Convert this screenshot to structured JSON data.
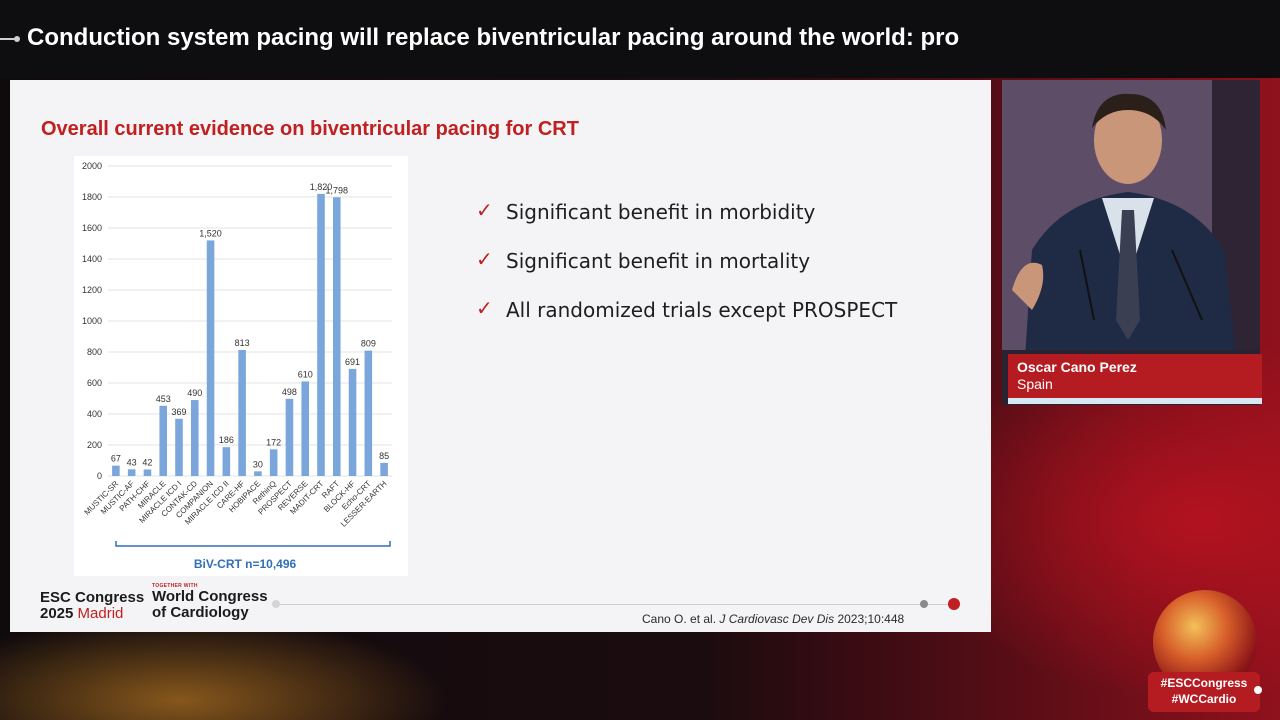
{
  "header": {
    "title": "Conduction system pacing will replace biventricular pacing around the world: pro"
  },
  "slide": {
    "title": "Overall current evidence on biventricular pacing for CRT",
    "bullets": [
      "Significant benefit in morbidity",
      "Significant benefit in mortality",
      "All randomized trials except PROSPECT"
    ],
    "check_glyph": "✓",
    "citation": {
      "authors": "Cano O. et al.",
      "journal": "J Cardiovasc Dev Dis",
      "ref": "2023;10:448"
    },
    "logos": {
      "esc_line1": "ESC Congress",
      "esc_year": "2025",
      "esc_city": "Madrid",
      "wcc_small": "TOGETHER WITH",
      "wcc_line1": "World Congress",
      "wcc_line2": "of Cardiology"
    }
  },
  "chart_data": {
    "type": "bar",
    "categories": [
      "MUSTIC-SR",
      "MUSTIC-AF",
      "PATH-CHF",
      "MIRACLE",
      "MIRACLE ICD I",
      "CONTAK-CD",
      "COMPANION",
      "MIRACLE ICD II",
      "CARE-HF",
      "HOBIPACE",
      "RethinQ",
      "PROSPECT",
      "REVERSE",
      "MADIT-CRT",
      "RAFT",
      "BLOCK-HF",
      "Echo-CRT",
      "LESSER-EARTH"
    ],
    "values": [
      67,
      43,
      42,
      453,
      369,
      490,
      1520,
      186,
      813,
      30,
      172,
      498,
      610,
      1820,
      1798,
      691,
      809,
      85
    ],
    "value_labels": [
      "67",
      "43",
      "42",
      "453",
      "369",
      "490",
      "1,520",
      "186",
      "813",
      "30",
      "172",
      "498",
      "610",
      "1,820",
      "1,798",
      "691",
      "809",
      "85"
    ],
    "yticks": [
      0,
      200,
      400,
      600,
      800,
      1000,
      1200,
      1400,
      1600,
      1800,
      2000
    ],
    "ylim": [
      0,
      2000
    ],
    "bar_color": "#7aa6dc",
    "bracket_label": "BiV-CRT n=10,496",
    "grid": true
  },
  "speaker": {
    "name": "Oscar Cano Perez",
    "country": "Spain"
  },
  "hashtags": [
    "#ESCCongress",
    "#WCCardio"
  ],
  "colors": {
    "accent": "#c0201f",
    "banner": "#b51c22"
  }
}
